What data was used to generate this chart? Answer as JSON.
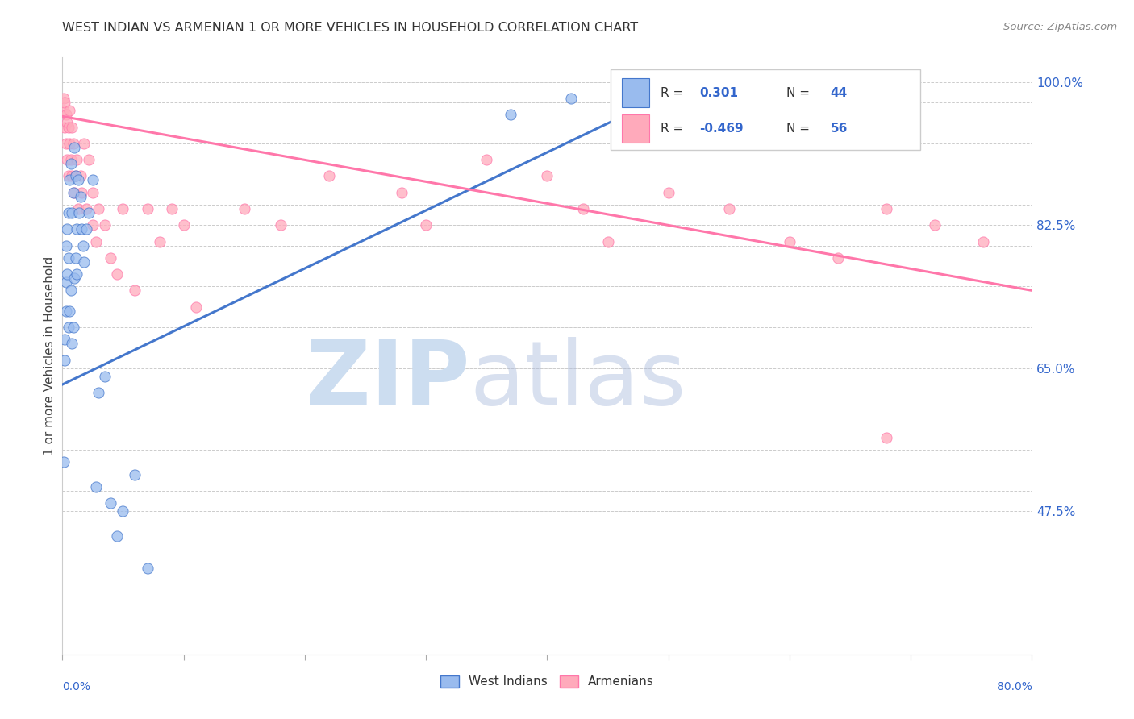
{
  "title": "WEST INDIAN VS ARMENIAN 1 OR MORE VEHICLES IN HOUSEHOLD CORRELATION CHART",
  "source": "Source: ZipAtlas.com",
  "ylabel": "1 or more Vehicles in Household",
  "xlim": [
    0.0,
    0.8
  ],
  "ylim": [
    0.3,
    1.03
  ],
  "right_ytick_labels": [
    "100.0%",
    "82.5%",
    "65.0%",
    "47.5%"
  ],
  "right_ytick_values": [
    1.0,
    0.825,
    0.65,
    0.475
  ],
  "legend_r_blue": "0.301",
  "legend_n_blue": "44",
  "legend_r_pink": "-0.469",
  "legend_n_pink": "56",
  "blue_color": "#99BBEE",
  "pink_color": "#FFAABB",
  "line_blue_color": "#4477CC",
  "line_pink_color": "#FF77AA",
  "background_color": "#FFFFFF",
  "west_indian_x": [
    0.001,
    0.002,
    0.002,
    0.003,
    0.003,
    0.003,
    0.004,
    0.004,
    0.005,
    0.005,
    0.005,
    0.006,
    0.006,
    0.007,
    0.007,
    0.008,
    0.008,
    0.009,
    0.009,
    0.01,
    0.01,
    0.011,
    0.011,
    0.012,
    0.012,
    0.013,
    0.014,
    0.015,
    0.016,
    0.017,
    0.018,
    0.02,
    0.022,
    0.025,
    0.028,
    0.03,
    0.035,
    0.04,
    0.045,
    0.05,
    0.06,
    0.07,
    0.37,
    0.42
  ],
  "west_indian_y": [
    0.535,
    0.66,
    0.685,
    0.72,
    0.755,
    0.8,
    0.765,
    0.82,
    0.7,
    0.785,
    0.84,
    0.72,
    0.88,
    0.745,
    0.9,
    0.68,
    0.84,
    0.7,
    0.865,
    0.76,
    0.92,
    0.785,
    0.885,
    0.765,
    0.82,
    0.88,
    0.84,
    0.86,
    0.82,
    0.8,
    0.78,
    0.82,
    0.84,
    0.88,
    0.505,
    0.62,
    0.64,
    0.485,
    0.445,
    0.475,
    0.52,
    0.405,
    0.96,
    0.98
  ],
  "armenian_x": [
    0.001,
    0.001,
    0.002,
    0.002,
    0.003,
    0.003,
    0.004,
    0.004,
    0.005,
    0.005,
    0.006,
    0.006,
    0.007,
    0.008,
    0.008,
    0.009,
    0.01,
    0.011,
    0.012,
    0.013,
    0.015,
    0.016,
    0.018,
    0.02,
    0.022,
    0.025,
    0.025,
    0.028,
    0.03,
    0.035,
    0.04,
    0.045,
    0.05,
    0.06,
    0.07,
    0.08,
    0.09,
    0.1,
    0.11,
    0.15,
    0.18,
    0.22,
    0.28,
    0.3,
    0.35,
    0.4,
    0.45,
    0.5,
    0.55,
    0.6,
    0.64,
    0.68,
    0.72,
    0.76,
    0.68,
    0.43
  ],
  "armenian_y": [
    0.98,
    0.965,
    0.945,
    0.975,
    0.96,
    0.925,
    0.905,
    0.95,
    0.885,
    0.945,
    0.925,
    0.965,
    0.905,
    0.945,
    0.885,
    0.925,
    0.865,
    0.885,
    0.905,
    0.845,
    0.885,
    0.865,
    0.925,
    0.845,
    0.905,
    0.825,
    0.865,
    0.805,
    0.845,
    0.825,
    0.785,
    0.765,
    0.845,
    0.745,
    0.845,
    0.805,
    0.845,
    0.825,
    0.725,
    0.845,
    0.825,
    0.885,
    0.865,
    0.825,
    0.905,
    0.885,
    0.805,
    0.865,
    0.845,
    0.805,
    0.785,
    0.845,
    0.825,
    0.805,
    0.565,
    0.845
  ],
  "blue_trend_x": [
    0.0,
    0.5
  ],
  "blue_trend_y": [
    0.63,
    0.985
  ],
  "pink_trend_x": [
    0.0,
    0.8
  ],
  "pink_trend_y": [
    0.958,
    0.745
  ],
  "grid_y_vals": [
    0.475,
    0.5,
    0.55,
    0.6,
    0.65,
    0.7,
    0.75,
    0.8,
    0.825,
    0.85,
    0.875,
    0.9,
    0.925,
    0.95,
    0.975,
    1.0
  ]
}
